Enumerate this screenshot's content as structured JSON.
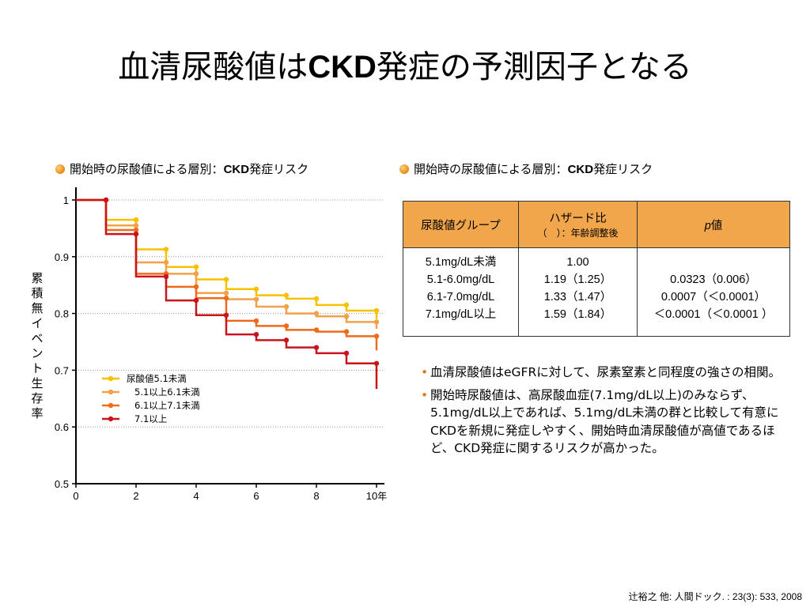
{
  "title_jp1": "血清尿酸値は",
  "title_ckd": "CKD",
  "title_jp2": "発症の予測因子となる",
  "left_heading_a": "開始時の尿酸値による層別：",
  "left_heading_b": "CKD",
  "left_heading_c": "発症リスク",
  "right_heading_a": "開始時の尿酸値による層別：",
  "right_heading_b": "CKD",
  "right_heading_c": "発症リスク",
  "ylabel": "累積無イベント生存率",
  "colors": {
    "s1": "#f7c100",
    "s2": "#f2a04a",
    "s3": "#ef6a1a",
    "s4": "#c8141a",
    "header": "#f2a64b"
  },
  "chart_data": {
    "type": "line",
    "step": true,
    "xlim": [
      0,
      10
    ],
    "ylim": [
      0.5,
      1.0
    ],
    "x_ticks": [
      "0",
      "2",
      "4",
      "6",
      "8",
      "10"
    ],
    "x_unit": "年",
    "y_ticks": [
      "1",
      "0.9",
      "0.8",
      "0.7",
      "0.6",
      "0.5"
    ],
    "grid": "horizontal dotted",
    "legend_position": "lower-left",
    "series": [
      {
        "name": "尿酸値5.1未満",
        "x": [
          0,
          1,
          2,
          3,
          4,
          5,
          6,
          7,
          8,
          9,
          10
        ],
        "y": [
          1.0,
          0.965,
          0.913,
          0.882,
          0.86,
          0.843,
          0.832,
          0.826,
          0.815,
          0.805,
          0.79
        ]
      },
      {
        "name": "5.1以上6.1未満",
        "x": [
          0,
          1,
          2,
          3,
          4,
          5,
          6,
          7,
          8,
          9,
          10
        ],
        "y": [
          1.0,
          0.955,
          0.89,
          0.87,
          0.836,
          0.825,
          0.812,
          0.8,
          0.795,
          0.785,
          0.773
        ]
      },
      {
        "name": "6.1以上7.1未満",
        "x": [
          0,
          1,
          2,
          3,
          4,
          5,
          6,
          7,
          8,
          9,
          10
        ],
        "y": [
          1.0,
          0.947,
          0.87,
          0.847,
          0.827,
          0.787,
          0.778,
          0.771,
          0.768,
          0.76,
          0.735
        ]
      },
      {
        "name": "7.1以上",
        "x": [
          0,
          1,
          2,
          3,
          4,
          5,
          6,
          7,
          8,
          9,
          10
        ],
        "y": [
          1.0,
          0.94,
          0.865,
          0.823,
          0.797,
          0.763,
          0.753,
          0.74,
          0.73,
          0.712,
          0.667
        ]
      }
    ]
  },
  "table": {
    "col1": "尿酸値グループ",
    "col2": "ハザード比",
    "col2_sub": "（　）：年齢調整後",
    "col3_italic": "p",
    "col3": "値",
    "groups": [
      "5.1mg/dL未満",
      "5.1-6.0mg/dL",
      "6.1-7.0mg/dL",
      "7.1mg/dL以上"
    ],
    "hr": [
      "1.00",
      "1.19（1.25）",
      "1.33（1.47）",
      "1.59（1.84）"
    ],
    "p": [
      "",
      "0.0323（0.006）",
      "0.0007（＜0.0001）",
      "＜0.0001（＜0.0001 ）"
    ]
  },
  "bullet1": "血清尿酸値はeGFRに対して、尿素窒素と同程度の強さの相関。",
  "bullet2": "開始時尿酸値は、高尿酸血症(7.1mg/dL以上)のみならず、5.1mg/dL以上であれば、5.1mg/dL未満の群と比較して有意にCKDを新規に発症しやすく、開始時血清尿酸値が高値であるほど、CKD発症に関するリスクが高かった。",
  "citation": "辻裕之 他: 人間ドック. : 23(3): 533, 2008"
}
